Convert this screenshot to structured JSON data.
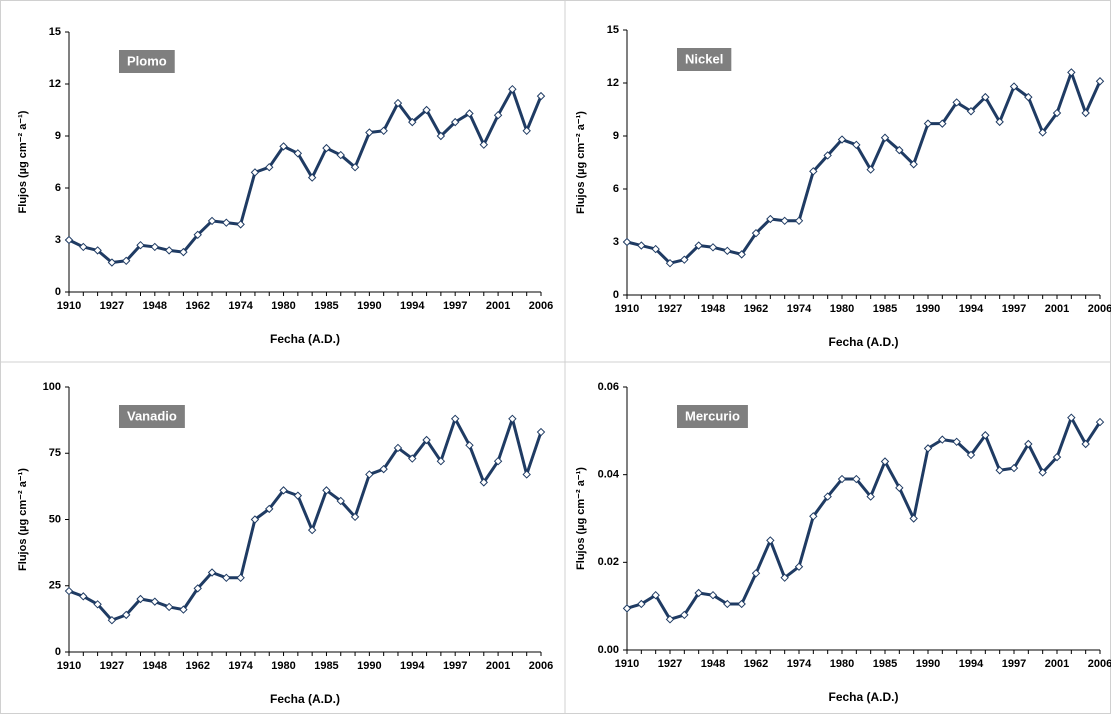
{
  "chart_data": [
    {
      "type": "line",
      "title": "Plomo",
      "x_label": "Fecha (A.D.)",
      "y_label": "Flujos (µg cm⁻² a⁻¹)",
      "color": "#1f3b63",
      "categories": [
        "1910",
        null,
        null,
        "1927",
        null,
        null,
        "1948",
        null,
        null,
        "1962",
        null,
        null,
        "1974",
        null,
        null,
        "1980",
        null,
        null,
        "1985",
        null,
        null,
        "1990",
        null,
        null,
        "1994",
        null,
        null,
        "1997",
        null,
        null,
        "2001",
        null,
        null,
        "2006"
      ],
      "values": [
        3.0,
        2.6,
        2.4,
        1.7,
        1.8,
        2.7,
        2.6,
        2.4,
        2.3,
        3.3,
        4.1,
        4.0,
        3.9,
        6.9,
        7.2,
        8.4,
        8.0,
        6.6,
        8.3,
        7.9,
        7.2,
        9.2,
        9.3,
        10.9,
        9.8,
        10.5,
        9.0,
        9.8,
        10.3,
        8.5,
        10.2,
        11.7,
        9.3,
        11.3
      ],
      "ylim": [
        0,
        15
      ],
      "yticks": [
        0,
        3,
        6,
        9,
        12,
        15
      ]
    },
    {
      "type": "line",
      "title": "Nickel",
      "x_label": "Fecha (A.D.)",
      "y_label": "Flujos (µg cm⁻² a⁻¹)",
      "color": "#1f3b63",
      "categories": [
        "1910",
        null,
        null,
        "1927",
        null,
        null,
        "1948",
        null,
        null,
        "1962",
        null,
        null,
        "1974",
        null,
        null,
        "1980",
        null,
        null,
        "1985",
        null,
        null,
        "1990",
        null,
        null,
        "1994",
        null,
        null,
        "1997",
        null,
        null,
        "2001",
        null,
        null,
        "2006"
      ],
      "values": [
        3.0,
        2.8,
        2.6,
        1.8,
        2.0,
        2.8,
        2.7,
        2.5,
        2.3,
        3.5,
        4.3,
        4.2,
        4.2,
        7.0,
        7.9,
        8.8,
        8.5,
        7.1,
        8.9,
        8.2,
        7.4,
        9.7,
        9.7,
        10.9,
        10.4,
        11.2,
        9.8,
        11.8,
        11.2,
        9.2,
        10.3,
        12.6,
        10.3,
        12.1
      ],
      "ylim": [
        0,
        15
      ],
      "yticks": [
        0,
        3,
        6,
        9,
        12,
        15
      ]
    },
    {
      "type": "line",
      "title": "Vanadio",
      "x_label": "Fecha (A.D.)",
      "y_label": "Flujos (µg cm⁻² a⁻¹)",
      "color": "#1f3b63",
      "categories": [
        "1910",
        null,
        null,
        "1927",
        null,
        null,
        "1948",
        null,
        null,
        "1962",
        null,
        null,
        "1974",
        null,
        null,
        "1980",
        null,
        null,
        "1985",
        null,
        null,
        "1990",
        null,
        null,
        "1994",
        null,
        null,
        "1997",
        null,
        null,
        "2001",
        null,
        null,
        "2006"
      ],
      "values": [
        23,
        21,
        18,
        12,
        14,
        20,
        19,
        17,
        16,
        24,
        30,
        28,
        28,
        50,
        54,
        61,
        59,
        46,
        61,
        57,
        51,
        67,
        69,
        77,
        73,
        80,
        72,
        88,
        78,
        64,
        72,
        88,
        67,
        83
      ],
      "ylim": [
        0,
        100
      ],
      "yticks": [
        0,
        25,
        50,
        75,
        100
      ]
    },
    {
      "type": "line",
      "title": "Mercurio",
      "x_label": "Fecha (A.D.)",
      "y_label": "Flujos (µg cm⁻² a⁻¹)",
      "color": "#1f3b63",
      "categories": [
        "1910",
        null,
        null,
        "1927",
        null,
        null,
        "1948",
        null,
        null,
        "1962",
        null,
        null,
        "1974",
        null,
        null,
        "1980",
        null,
        null,
        "1985",
        null,
        null,
        "1990",
        null,
        null,
        "1994",
        null,
        null,
        "1997",
        null,
        null,
        "2001",
        null,
        null,
        "2006"
      ],
      "values": [
        0.0095,
        0.0105,
        0.0125,
        0.007,
        0.008,
        0.013,
        0.0125,
        0.0105,
        0.0105,
        0.0175,
        0.025,
        0.0165,
        0.019,
        0.0305,
        0.035,
        0.039,
        0.039,
        0.035,
        0.043,
        0.037,
        0.03,
        0.046,
        0.048,
        0.0475,
        0.0445,
        0.049,
        0.041,
        0.0415,
        0.047,
        0.0405,
        0.044,
        0.053,
        0.047,
        0.052
      ],
      "ylim": [
        0,
        0.06
      ],
      "yticks": [
        {
          "value": 0,
          "label": "0.00"
        },
        0.02,
        0.04,
        0.06
      ]
    }
  ]
}
